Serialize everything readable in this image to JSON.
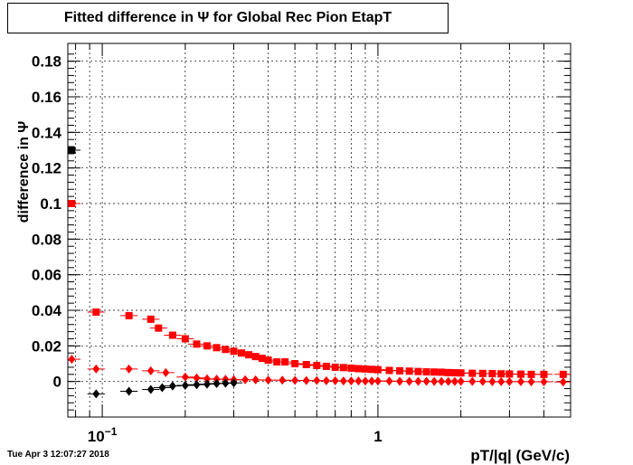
{
  "title": "Fitted difference in  Ψ  for Global Rec Pion EtapT",
  "timestamp": "Tue Apr  3 12:07:27 2018",
  "chart_data": {
    "type": "scatter",
    "title": "Fitted difference in  Ψ  for Global Rec Pion EtapT",
    "xlabel": "pT/|q| (GeV/c)",
    "ylabel": "difference in  Ψ",
    "xscale": "log",
    "xlim": [
      0.075,
      5.0
    ],
    "ylim": [
      -0.02,
      0.19
    ],
    "grid": true,
    "x_tick_labels": [
      "10^-1",
      "1"
    ],
    "y_tick_labels": [
      "0",
      "0.02",
      "0.04",
      "0.06",
      "0.08",
      "0.1",
      "0.12",
      "0.14",
      "0.16",
      "0.18"
    ],
    "series": [
      {
        "marker": "square",
        "color": "#ff0000",
        "x": [
          0.0775,
          0.095,
          0.125,
          0.15,
          0.16,
          0.18,
          0.2,
          0.22,
          0.24,
          0.26,
          0.28,
          0.3,
          0.32,
          0.34,
          0.36,
          0.38,
          0.4,
          0.43,
          0.46,
          0.5,
          0.55,
          0.6,
          0.65,
          0.7,
          0.75,
          0.8,
          0.85,
          0.9,
          0.95,
          1.0,
          1.1,
          1.2,
          1.3,
          1.4,
          1.5,
          1.6,
          1.7,
          1.8,
          1.9,
          2.0,
          2.2,
          2.4,
          2.6,
          2.8,
          3.0,
          3.3,
          3.6,
          4.0,
          4.7
        ],
        "y": [
          0.1,
          0.039,
          0.037,
          0.035,
          0.03,
          0.026,
          0.024,
          0.021,
          0.02,
          0.019,
          0.018,
          0.017,
          0.016,
          0.015,
          0.014,
          0.013,
          0.012,
          0.011,
          0.011,
          0.01,
          0.0095,
          0.009,
          0.0085,
          0.008,
          0.0078,
          0.0075,
          0.0072,
          0.007,
          0.0068,
          0.0066,
          0.0062,
          0.006,
          0.0058,
          0.0056,
          0.0054,
          0.0053,
          0.0052,
          0.005,
          0.0049,
          0.0048,
          0.0046,
          0.0045,
          0.0044,
          0.0043,
          0.0042,
          0.0041,
          0.004,
          0.004,
          0.004
        ]
      },
      {
        "marker": "square",
        "color": "#000000",
        "x": [
          0.0775
        ],
        "y": [
          0.13
        ]
      },
      {
        "marker": "diamond",
        "color": "#ff0000",
        "x": [
          0.0775,
          0.095,
          0.125,
          0.15,
          0.17,
          0.2,
          0.22,
          0.24,
          0.26,
          0.28,
          0.3,
          0.33,
          0.36,
          0.4,
          0.45,
          0.5,
          0.55,
          0.6,
          0.65,
          0.7,
          0.75,
          0.8,
          0.85,
          0.9,
          0.95,
          1.0,
          1.1,
          1.2,
          1.3,
          1.4,
          1.5,
          1.6,
          1.7,
          1.8,
          1.9,
          2.0,
          2.2,
          2.4,
          2.6,
          2.8,
          3.0,
          3.3,
          3.6,
          4.0,
          4.7
        ],
        "y": [
          0.0125,
          0.007,
          0.007,
          0.006,
          0.005,
          0.0025,
          0.002,
          0.0015,
          0.0013,
          0.0012,
          0.001,
          0.001,
          0.0009,
          0.0008,
          0.0007,
          0.0006,
          0.0005,
          0.0005,
          0.0004,
          0.0004,
          0.0003,
          0.0003,
          0.0003,
          0.0002,
          0.0002,
          0.0002,
          0.0002,
          0.0001,
          0.0001,
          0.0001,
          0.0001,
          0.0,
          0.0,
          0.0,
          0.0,
          0.0,
          0.0,
          0.0,
          -0.0001,
          -0.0001,
          -0.0001,
          -0.0001,
          -0.0002,
          -0.0002,
          -0.0003
        ]
      },
      {
        "marker": "diamond",
        "color": "#000000",
        "x": [
          0.095,
          0.125,
          0.15,
          0.165,
          0.18,
          0.2,
          0.22,
          0.24,
          0.26,
          0.28,
          0.3
        ],
        "y": [
          -0.007,
          -0.0055,
          -0.0045,
          -0.0035,
          -0.0025,
          -0.0022,
          -0.0018,
          -0.0015,
          -0.0012,
          -0.001,
          -0.0008
        ]
      }
    ]
  }
}
